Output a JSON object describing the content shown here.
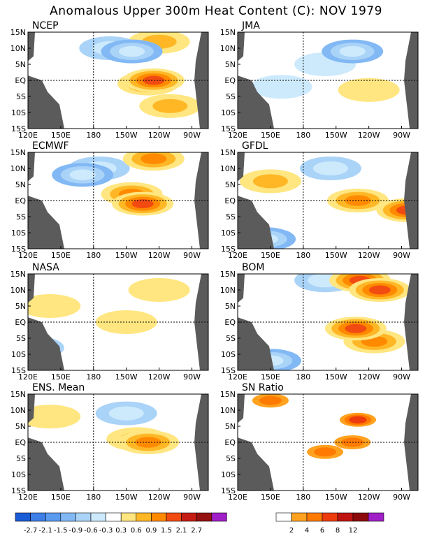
{
  "title": "Anomalous Upper 300m Heat Content (C): NOV 1979",
  "chart_data": [
    {
      "type": "heatmap",
      "title": "NCEP",
      "x_ticks": [
        "120E",
        "150E",
        "180",
        "150W",
        "120W",
        "90W"
      ],
      "y_ticks": [
        "15N",
        "10N",
        "5N",
        "EQ",
        "5S",
        "10S",
        "15S"
      ],
      "features": [
        {
          "lon": -125,
          "lat": 0,
          "value": 1.5
        },
        {
          "lon": -130,
          "lat": -1,
          "value": 0.9
        },
        {
          "lon": -110,
          "lat": -8,
          "value": 0.6
        },
        {
          "lon": -120,
          "lat": 12,
          "value": 0.6
        },
        {
          "lon": -165,
          "lat": 10,
          "value": -0.6
        },
        {
          "lon": -145,
          "lat": 9,
          "value": -0.9
        }
      ]
    },
    {
      "type": "heatmap",
      "title": "JMA",
      "x_ticks": [
        "120E",
        "150E",
        "180",
        "150W",
        "120W",
        "90W"
      ],
      "y_ticks": [
        "15N",
        "10N",
        "5N",
        "EQ",
        "5S",
        "10S",
        "15S"
      ],
      "features": [
        {
          "lon": -135,
          "lat": 9,
          "value": -0.9
        },
        {
          "lon": -160,
          "lat": 5,
          "value": -0.3
        },
        {
          "lon": -120,
          "lat": -3,
          "value": 0.3
        },
        {
          "lon": 160,
          "lat": -2,
          "value": -0.3
        }
      ]
    },
    {
      "type": "heatmap",
      "title": "ECMWF",
      "x_ticks": [
        "120E",
        "150E",
        "180",
        "150W",
        "120W",
        "90W"
      ],
      "y_ticks": [
        "15N",
        "10N",
        "5N",
        "EQ",
        "5S",
        "10S",
        "15S"
      ],
      "features": [
        {
          "lon": -135,
          "lat": -1,
          "value": 1.5
        },
        {
          "lon": -145,
          "lat": 2,
          "value": 0.9
        },
        {
          "lon": -125,
          "lat": 13,
          "value": 0.9
        },
        {
          "lon": 170,
          "lat": 8,
          "value": -0.9
        },
        {
          "lon": -175,
          "lat": 10,
          "value": -0.6
        }
      ]
    },
    {
      "type": "heatmap",
      "title": "GFDL",
      "x_ticks": [
        "120E",
        "150E",
        "180",
        "150W",
        "120W",
        "90W"
      ],
      "y_ticks": [
        "15N",
        "10N",
        "5N",
        "EQ",
        "5S",
        "10S",
        "15S"
      ],
      "features": [
        {
          "lon": -130,
          "lat": 0,
          "value": 0.9
        },
        {
          "lon": -85,
          "lat": -3,
          "value": 1.5
        },
        {
          "lon": 150,
          "lat": 6,
          "value": 0.6
        },
        {
          "lon": -155,
          "lat": 10,
          "value": -0.6
        },
        {
          "lon": 145,
          "lat": -12,
          "value": -0.9
        }
      ]
    },
    {
      "type": "heatmap",
      "title": "NASA",
      "x_ticks": [
        "120E",
        "150E",
        "180",
        "150W",
        "120W",
        "90W"
      ],
      "y_ticks": [
        "15N",
        "10N",
        "5N",
        "EQ",
        "5S",
        "10S",
        "15S"
      ],
      "features": [
        {
          "lon": -150,
          "lat": 0,
          "value": 0.3
        },
        {
          "lon": 140,
          "lat": 5,
          "value": 0.3
        },
        {
          "lon": -120,
          "lat": 10,
          "value": 0.3
        },
        {
          "lon": 125,
          "lat": -8,
          "value": -0.6
        }
      ]
    },
    {
      "type": "heatmap",
      "title": "BOM",
      "x_ticks": [
        "120E",
        "150E",
        "180",
        "150W",
        "120W",
        "90W"
      ],
      "y_ticks": [
        "15N",
        "10N",
        "5N",
        "EQ",
        "5S",
        "10S",
        "15S"
      ],
      "features": [
        {
          "lon": -132,
          "lat": -2,
          "value": 1.5
        },
        {
          "lon": -128,
          "lat": 13,
          "value": 1.5
        },
        {
          "lon": -110,
          "lat": 10,
          "value": 1.5
        },
        {
          "lon": -115,
          "lat": -6,
          "value": 0.9
        },
        {
          "lon": -160,
          "lat": 13,
          "value": -0.6
        },
        {
          "lon": 150,
          "lat": -12,
          "value": -0.9
        }
      ]
    },
    {
      "type": "heatmap",
      "title": "ENS. Mean",
      "x_ticks": [
        "120E",
        "150E",
        "180",
        "150W",
        "120W",
        "90W"
      ],
      "y_ticks": [
        "15N",
        "10N",
        "5N",
        "EQ",
        "5S",
        "10S",
        "15S"
      ],
      "features": [
        {
          "lon": -130,
          "lat": 0,
          "value": 0.9
        },
        {
          "lon": -140,
          "lat": 1,
          "value": 0.6
        },
        {
          "lon": -150,
          "lat": 9,
          "value": -0.6
        },
        {
          "lon": 140,
          "lat": 8,
          "value": 0.3
        }
      ]
    },
    {
      "type": "heatmap",
      "title": "SN Ratio",
      "x_ticks": [
        "120E",
        "150E",
        "180",
        "150W",
        "120W",
        "90W"
      ],
      "y_ticks": [
        "15N",
        "10N",
        "5N",
        "EQ",
        "5S",
        "10S",
        "15S"
      ],
      "features": [
        {
          "lon": -135,
          "lat": 0,
          "value": 4
        },
        {
          "lon": -130,
          "lat": 7,
          "value": 6
        },
        {
          "lon": -160,
          "lat": -3,
          "value": 4
        },
        {
          "lon": 150,
          "lat": 13,
          "value": 4
        }
      ]
    }
  ],
  "colorbar_anomaly": {
    "colors": [
      "#1a5bd6",
      "#3d7fe6",
      "#5a9bf0",
      "#82b9f5",
      "#aad3f8",
      "#cdeafd",
      "#ffffff",
      "#ffe680",
      "#ffb726",
      "#ff8a00",
      "#f24b12",
      "#c41c14",
      "#951010",
      "#a01fc8"
    ],
    "labels": [
      "-2.7",
      "-2.1",
      "-1.5",
      "-0.9",
      "-0.6",
      "-0.3",
      "0.3",
      "0.6",
      "0.9",
      "1.5",
      "2.1",
      "2.7"
    ]
  },
  "colorbar_sn": {
    "colors": [
      "#ffffff",
      "#ffa21f",
      "#ff7a00",
      "#ee3b0e",
      "#c01412",
      "#8c0a0a",
      "#a01fc8"
    ],
    "labels": [
      "2",
      "4",
      "6",
      "8",
      "12"
    ]
  }
}
